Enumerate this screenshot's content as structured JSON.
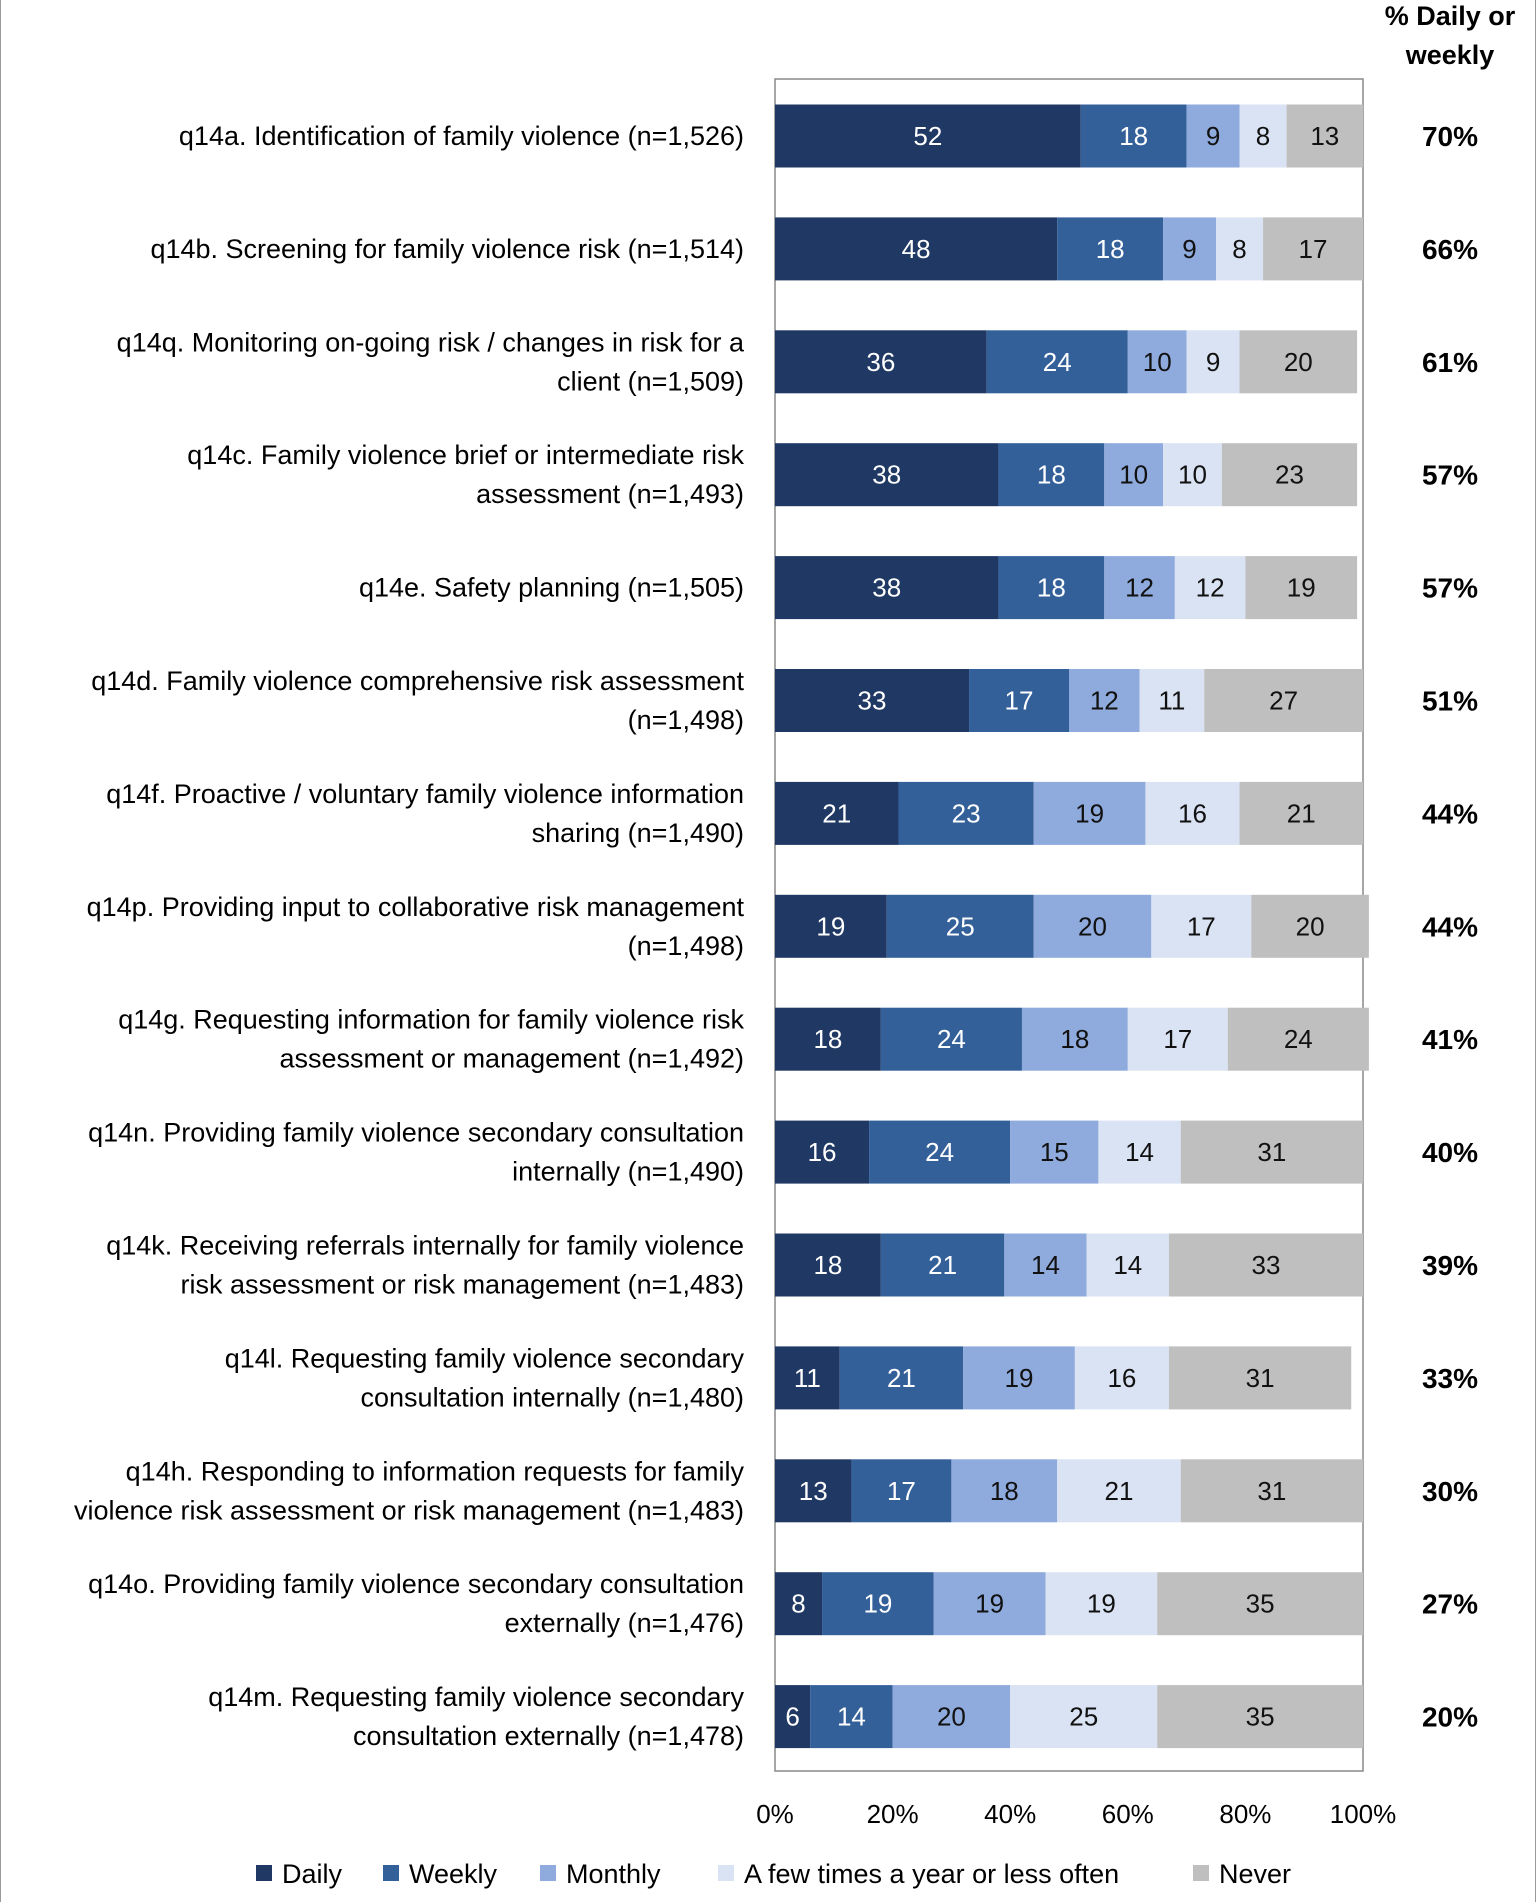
{
  "chart_data": {
    "type": "bar",
    "orientation": "horizontal",
    "stacked": true,
    "right_column_header": [
      "% Daily or",
      "weekly"
    ],
    "categories": [
      [
        "q14a. Identification of family violence (n=1,526)"
      ],
      [
        "q14b. Screening for family violence risk (n=1,514)"
      ],
      [
        "q14q. Monitoring on-going risk / changes in risk for a",
        "client (n=1,509)"
      ],
      [
        "q14c. Family violence brief or intermediate risk",
        "assessment (n=1,493)"
      ],
      [
        "q14e. Safety planning (n=1,505)"
      ],
      [
        "q14d. Family violence comprehensive risk assessment",
        "(n=1,498)"
      ],
      [
        "q14f. Proactive / voluntary family violence information",
        "sharing (n=1,490)"
      ],
      [
        "q14p. Providing input to collaborative risk management",
        "(n=1,498)"
      ],
      [
        "q14g. Requesting information for family violence risk",
        "assessment or management (n=1,492)"
      ],
      [
        "q14n. Providing family violence secondary consultation",
        "internally (n=1,490)"
      ],
      [
        "q14k. Receiving referrals internally for family violence",
        "risk assessment or risk management (n=1,483)"
      ],
      [
        "q14l. Requesting family violence secondary",
        "consultation internally (n=1,480)"
      ],
      [
        "q14h. Responding to information requests for family",
        "violence risk assessment or risk management (n=1,483)"
      ],
      [
        "q14o. Providing family violence secondary consultation",
        "externally (n=1,476)"
      ],
      [
        "q14m. Requesting family violence secondary",
        "consultation externally (n=1,478)"
      ]
    ],
    "series": [
      {
        "name": "Daily",
        "color": "#203864",
        "values": [
          52,
          48,
          36,
          38,
          38,
          33,
          21,
          19,
          18,
          16,
          18,
          11,
          13,
          8,
          6
        ]
      },
      {
        "name": "Weekly",
        "color": "#34609a",
        "values": [
          18,
          18,
          24,
          18,
          18,
          17,
          23,
          25,
          24,
          24,
          21,
          21,
          17,
          19,
          14
        ]
      },
      {
        "name": "Monthly",
        "color": "#8faadc",
        "values": [
          9,
          9,
          10,
          10,
          12,
          12,
          19,
          20,
          18,
          15,
          14,
          19,
          18,
          19,
          20
        ]
      },
      {
        "name": "A few times a year or less often",
        "color": "#dae3f3",
        "values": [
          8,
          8,
          9,
          10,
          12,
          11,
          16,
          17,
          17,
          14,
          14,
          16,
          21,
          19,
          25
        ]
      },
      {
        "name": "Never",
        "color": "#bfbfbf",
        "values": [
          13,
          17,
          20,
          23,
          19,
          27,
          21,
          20,
          24,
          31,
          33,
          31,
          31,
          35,
          35
        ]
      }
    ],
    "daily_or_weekly": [
      "70%",
      "66%",
      "61%",
      "57%",
      "57%",
      "51%",
      "44%",
      "44%",
      "41%",
      "40%",
      "39%",
      "33%",
      "30%",
      "27%",
      "20%"
    ],
    "xticks": [
      "0%",
      "20%",
      "40%",
      "60%",
      "80%",
      "100%"
    ],
    "xlim": [
      0,
      100
    ],
    "legend_position": "bottom",
    "grid": false
  }
}
